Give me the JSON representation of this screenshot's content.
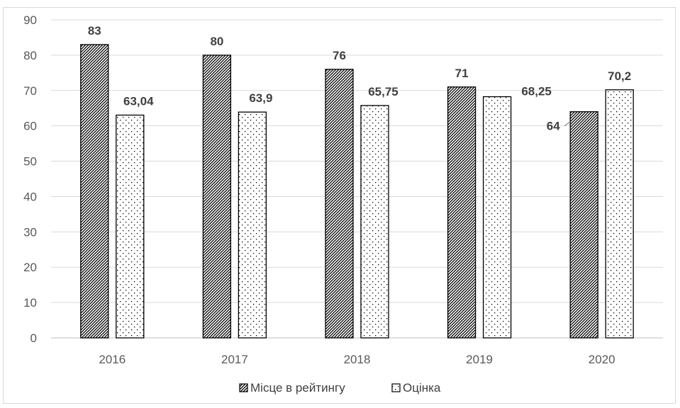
{
  "chart_data": {
    "type": "bar",
    "categories": [
      "2016",
      "2017",
      "2018",
      "2019",
      "2020"
    ],
    "series": [
      {
        "name": "Місце в рейтингу",
        "values": [
          83,
          80,
          76,
          71,
          64
        ],
        "labels": [
          "83",
          "80",
          "76",
          "71",
          "64"
        ],
        "pattern": "diagonal-hatch"
      },
      {
        "name": "Оцінка",
        "values": [
          63.04,
          63.9,
          65.75,
          68.25,
          70.2
        ],
        "labels": [
          "63,04",
          "63,9",
          "65,75",
          "68,25",
          "70,2"
        ],
        "pattern": "dots"
      }
    ],
    "ylim": [
      0,
      90
    ],
    "yticks": [
      "0",
      "10",
      "20",
      "30",
      "40",
      "50",
      "60",
      "70",
      "80",
      "90"
    ],
    "grid": true,
    "legend_position": "bottom",
    "title": "",
    "xlabel": "",
    "ylabel": "",
    "colors": {
      "bar_stroke": "#000000",
      "grid": "#d9d9d9",
      "text": "#595959"
    }
  }
}
